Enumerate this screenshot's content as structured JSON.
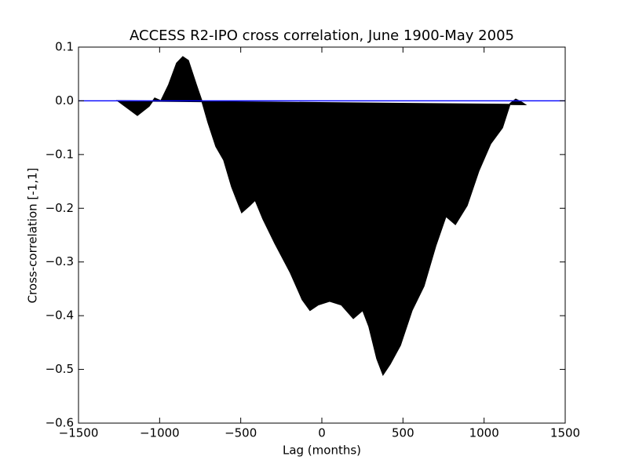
{
  "chart_data": {
    "type": "area",
    "title": "ACCESS R2-IPO cross correlation, June 1900-May 2005",
    "x_label": "Lag (months)",
    "y_label": "Cross-correlation [-1,1]",
    "x": [
      -1258,
      -1137,
      -1065,
      -1030,
      -992,
      -944,
      -895,
      -857,
      -823,
      -774,
      -740,
      -702,
      -653,
      -605,
      -556,
      -494,
      -445,
      -411,
      -363,
      -290,
      -194,
      -121,
      -73,
      -24,
      48,
      121,
      194,
      252,
      290,
      339,
      377,
      421,
      484,
      556,
      629,
      702,
      765,
      823,
      895,
      968,
      1040,
      1113,
      1161,
      1195,
      1234,
      1253
    ],
    "series": [
      {
        "color": "#000000",
        "values": [
          0,
          -0.027,
          -0.01,
          0.005,
          0.0,
          0.03,
          0.07,
          0.082,
          0.075,
          0.03,
          0.0,
          -0.04,
          -0.085,
          -0.11,
          -0.16,
          -0.208,
          -0.195,
          -0.185,
          -0.22,
          -0.265,
          -0.32,
          -0.37,
          -0.39,
          -0.38,
          -0.373,
          -0.38,
          -0.405,
          -0.39,
          -0.42,
          -0.48,
          -0.51,
          -0.49,
          -0.455,
          -0.39,
          -0.345,
          -0.27,
          -0.215,
          -0.23,
          -0.195,
          -0.13,
          -0.08,
          -0.05,
          -0.005,
          0.003,
          -0.003,
          -0.007
        ]
      }
    ],
    "hline": {
      "y": 0,
      "color": "#0000ff"
    },
    "xlim": [
      -1500,
      1500
    ],
    "xticks": [
      {
        "value": -1500,
        "label": "−1500"
      },
      {
        "value": -1000,
        "label": "−1000"
      },
      {
        "value": -500,
        "label": "−500"
      },
      0,
      500,
      1000,
      1500
    ],
    "ylim": [
      -0.6,
      0.1
    ],
    "yticks": [
      {
        "value": -0.6,
        "label": "−0.6"
      },
      {
        "value": -0.5,
        "label": "−0.5"
      },
      {
        "value": -0.4,
        "label": "−0.4"
      },
      {
        "value": -0.3,
        "label": "−0.3"
      },
      {
        "value": -0.2,
        "label": "−0.2"
      },
      {
        "value": -0.1,
        "label": "−0.1"
      },
      {
        "value": 0,
        "label": "0.0"
      },
      {
        "value": 0.1,
        "label": "0.1"
      }
    ],
    "grid": false
  }
}
